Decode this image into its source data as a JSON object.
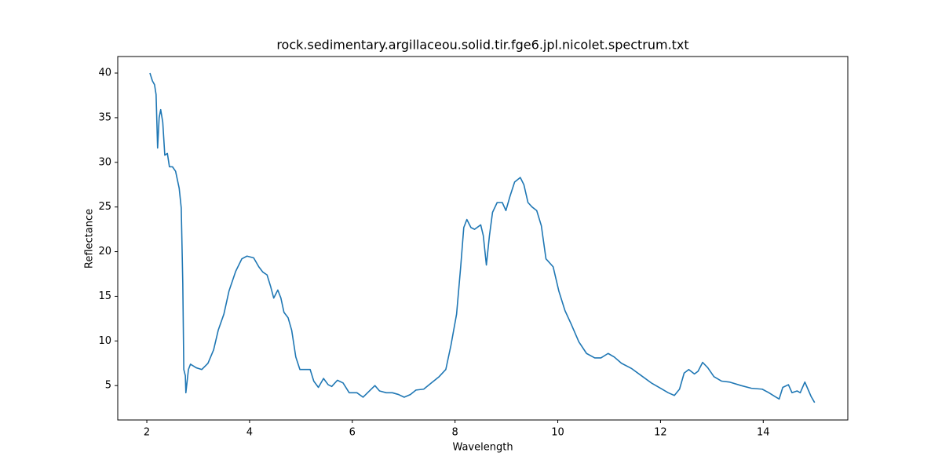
{
  "chart_data": {
    "type": "line",
    "title": "rock.sedimentary.argillaceou.solid.tir.fge6.jpl.nicolet.spectrum.txt",
    "x_label": "Wavelength",
    "y_label": "Reflectance",
    "x": [
      2.06,
      2.11,
      2.15,
      2.18,
      2.21,
      2.24,
      2.27,
      2.31,
      2.35,
      2.4,
      2.44,
      2.5,
      2.56,
      2.63,
      2.67,
      2.7,
      2.72,
      2.75,
      2.76,
      2.81,
      2.85,
      2.96,
      3.07,
      3.19,
      3.3,
      3.39,
      3.5,
      3.6,
      3.73,
      3.85,
      3.95,
      4.08,
      4.18,
      4.26,
      4.34,
      4.41,
      4.47,
      4.55,
      4.61,
      4.67,
      4.75,
      4.82,
      4.9,
      4.98,
      5.07,
      5.18,
      5.25,
      5.34,
      5.44,
      5.53,
      5.6,
      5.71,
      5.82,
      5.94,
      6.09,
      6.21,
      6.35,
      6.44,
      6.53,
      6.66,
      6.78,
      6.9,
      7.01,
      7.13,
      7.24,
      7.39,
      7.54,
      7.69,
      7.82,
      7.92,
      8.03,
      8.11,
      8.17,
      8.23,
      8.31,
      8.38,
      8.5,
      8.55,
      8.61,
      8.67,
      8.73,
      8.82,
      8.92,
      8.99,
      9.07,
      9.16,
      9.27,
      9.34,
      9.42,
      9.5,
      9.59,
      9.68,
      9.77,
      9.91,
      10.02,
      10.14,
      10.26,
      10.41,
      10.56,
      10.72,
      10.84,
      10.98,
      11.1,
      11.24,
      11.44,
      11.63,
      11.82,
      12.0,
      12.15,
      12.27,
      12.37,
      12.46,
      12.55,
      12.66,
      12.73,
      12.82,
      12.92,
      13.04,
      13.19,
      13.34,
      13.57,
      13.77,
      13.98,
      14.11,
      14.22,
      14.31,
      14.38,
      14.49,
      14.56,
      14.66,
      14.72,
      14.81,
      14.87,
      14.93,
      15.0
    ],
    "series": [
      {
        "name": "Reflectance",
        "color": "#1f77b4",
        "values": [
          40.0,
          39.1,
          38.7,
          37.6,
          31.6,
          35.0,
          35.9,
          34.5,
          30.8,
          31.0,
          29.5,
          29.5,
          29.0,
          27.1,
          24.9,
          16.5,
          6.8,
          6.1,
          4.2,
          6.8,
          7.4,
          7.0,
          6.8,
          7.5,
          9.0,
          11.2,
          13.0,
          15.6,
          17.8,
          19.2,
          19.5,
          19.3,
          18.3,
          17.7,
          17.4,
          16.1,
          14.8,
          15.7,
          14.8,
          13.2,
          12.6,
          11.2,
          8.2,
          6.8,
          6.8,
          6.8,
          5.5,
          4.8,
          5.8,
          5.1,
          4.9,
          5.6,
          5.3,
          4.2,
          4.2,
          3.7,
          4.5,
          5.0,
          4.4,
          4.2,
          4.2,
          4.0,
          3.7,
          4.0,
          4.5,
          4.6,
          5.3,
          6.0,
          6.8,
          9.5,
          13.0,
          18.3,
          22.7,
          23.6,
          22.7,
          22.5,
          23.0,
          21.8,
          18.5,
          21.8,
          24.4,
          25.5,
          25.5,
          24.6,
          26.2,
          27.8,
          28.3,
          27.5,
          25.5,
          25.0,
          24.6,
          22.9,
          19.2,
          18.3,
          15.6,
          13.4,
          11.9,
          9.9,
          8.6,
          8.1,
          8.1,
          8.6,
          8.2,
          7.5,
          6.9,
          6.1,
          5.3,
          4.7,
          4.2,
          3.9,
          4.6,
          6.4,
          6.8,
          6.3,
          6.6,
          7.6,
          7.0,
          6.0,
          5.5,
          5.4,
          5.0,
          4.7,
          4.6,
          4.2,
          3.8,
          3.5,
          4.8,
          5.1,
          4.2,
          4.4,
          4.2,
          5.4,
          4.6,
          3.8,
          3.1
        ]
      }
    ],
    "xlim": [
      1.434,
      15.646
    ],
    "ylim": [
      1.15,
      41.85
    ],
    "xticks": [
      2,
      4,
      6,
      8,
      10,
      12,
      14
    ],
    "yticks": [
      5,
      10,
      15,
      20,
      25,
      30,
      35,
      40
    ]
  }
}
